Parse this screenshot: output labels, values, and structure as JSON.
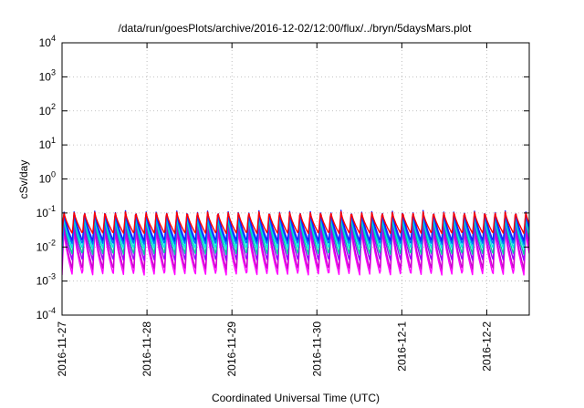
{
  "chart_data": {
    "type": "line",
    "title": "/data/run/goesPlots/archive/2016-12-02/12:00/flux/../bryn/5daysMars.plot",
    "xlabel": "Coordinated Universal Time (UTC)",
    "ylabel": "cSv/day",
    "yscale": "log",
    "ylim": [
      0.0001,
      10000
    ],
    "y_ticks": [
      {
        "value": 0.0001,
        "base": "10",
        "exp": "-4"
      },
      {
        "value": 0.001,
        "base": "10",
        "exp": "-3"
      },
      {
        "value": 0.01,
        "base": "10",
        "exp": "-2"
      },
      {
        "value": 0.1,
        "base": "10",
        "exp": "-1"
      },
      {
        "value": 1,
        "base": "10",
        "exp": "0"
      },
      {
        "value": 10,
        "base": "10",
        "exp": "1"
      },
      {
        "value": 100,
        "base": "10",
        "exp": "2"
      },
      {
        "value": 1000,
        "base": "10",
        "exp": "3"
      },
      {
        "value": 10000,
        "base": "10",
        "exp": "4"
      }
    ],
    "xlim": [
      "2016-11-27T00:00",
      "2016-12-02T12:00"
    ],
    "x_ticks": [
      {
        "date": "2016-11-27T00:00",
        "label": "2016-11-27"
      },
      {
        "date": "2016-11-28T00:00",
        "label": "2016-11-28"
      },
      {
        "date": "2016-11-29T00:00",
        "label": "2016-11-29"
      },
      {
        "date": "2016-11-30T00:00",
        "label": "2016-11-30"
      },
      {
        "date": "2016-12-01T00:00",
        "label": "2016-12-1"
      },
      {
        "date": "2016-12-02T00:00",
        "label": "2016-12-2"
      }
    ],
    "grid": true,
    "orbit_period_hours": 2.9,
    "series": [
      {
        "color": "#ff00ff",
        "peak": 0.035,
        "trough": 0.0015
      },
      {
        "color": "#cc00cc",
        "peak": 0.045,
        "trough": 0.0022
      },
      {
        "color": "#9900ff",
        "peak": 0.06,
        "trough": 0.004
      },
      {
        "color": "#00c8a0",
        "peak": 0.075,
        "trough": 0.006
      },
      {
        "color": "#00e5e5",
        "peak": 0.085,
        "trough": 0.009
      },
      {
        "color": "#0066ff",
        "peak": 0.1,
        "trough": 0.012
      },
      {
        "color": "#1a1aff",
        "peak": 0.12,
        "trough": 0.015
      },
      {
        "color": "#ff0000",
        "peak": 0.11,
        "trough": 0.025
      }
    ]
  }
}
